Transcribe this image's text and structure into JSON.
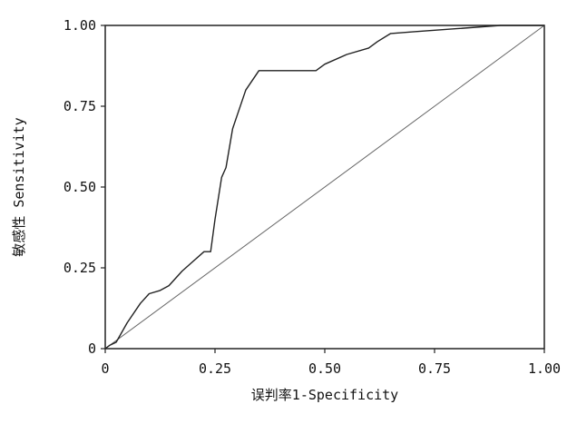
{
  "chart_data": {
    "type": "line",
    "title": "",
    "xlabel": "误判率1-Specificity",
    "ylabel": "敏感性 Sensitivity",
    "xlim": [
      0,
      1
    ],
    "ylim": [
      0,
      1
    ],
    "grid": false,
    "x_ticks": [
      "0",
      "0.25",
      "0.50",
      "0.75",
      "1.00"
    ],
    "y_ticks": [
      "0",
      "0.25",
      "0.50",
      "0.75",
      "1.00"
    ],
    "series": [
      {
        "name": "",
        "style": "roc",
        "color": "#222222",
        "x": [
          0,
          0.01,
          0.025,
          0.05,
          0.08,
          0.1,
          0.125,
          0.145,
          0.175,
          0.2,
          0.225,
          0.24,
          0.25,
          0.265,
          0.275,
          0.29,
          0.3,
          0.32,
          0.35,
          0.4,
          0.48,
          0.5,
          0.55,
          0.6,
          0.62,
          0.65,
          0.7,
          0.8,
          0.9,
          1.0
        ],
        "y": [
          0,
          0.01,
          0.02,
          0.08,
          0.14,
          0.17,
          0.18,
          0.195,
          0.24,
          0.27,
          0.3,
          0.3,
          0.4,
          0.53,
          0.56,
          0.68,
          0.72,
          0.8,
          0.86,
          0.86,
          0.86,
          0.88,
          0.91,
          0.93,
          0.95,
          0.975,
          0.98,
          0.99,
          1.0,
          1.0
        ]
      },
      {
        "name": "",
        "style": "reference",
        "color": "#666666",
        "x": [
          0,
          1
        ],
        "y": [
          0,
          1
        ]
      }
    ]
  }
}
